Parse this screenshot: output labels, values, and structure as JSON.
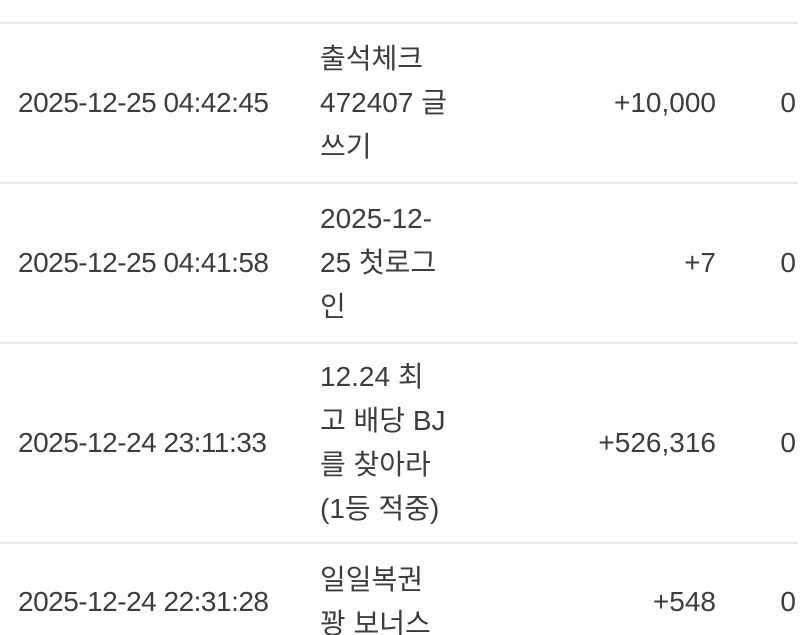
{
  "colors": {
    "text": "#3d3d3d",
    "separator": "#e9e9e9",
    "background": "#ffffff"
  },
  "table": {
    "rows": [
      {
        "datetime": "2025-12-25 04:42:45",
        "description": "출석체크\n472407 글\n쓰기",
        "amount": "+10,000",
        "right_value": "0"
      },
      {
        "datetime": "2025-12-25 04:41:58",
        "description": "2025-12-\n25 첫로그\n인",
        "amount": "+7",
        "right_value": "0"
      },
      {
        "datetime": "2025-12-24 23:11:33",
        "description": "12.24 최\n고 배당 BJ\n를 찾아라\n(1등 적중)",
        "amount": "+526,316",
        "right_value": "0"
      },
      {
        "datetime": "2025-12-24 22:31:28",
        "description": "일일복권\n꽝 보너스",
        "amount": "+548",
        "right_value": "0"
      }
    ]
  }
}
